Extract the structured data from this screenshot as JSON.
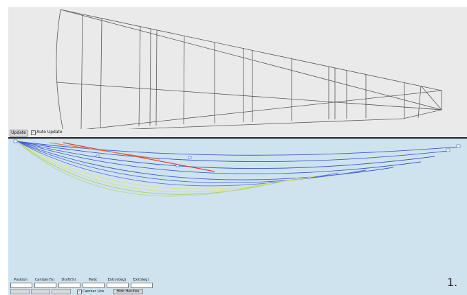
{
  "toolbar": {
    "update_label": "Update",
    "auto_update_label": "Auto Update",
    "auto_update_checked": true
  },
  "controls": {
    "columns": [
      "Position",
      "Camber(%)",
      "Draft(%)",
      "Twist",
      "Entry(deg)",
      "Exit(deg)"
    ],
    "camber_link_label": "Camber Link",
    "camber_link_checked": true,
    "hide_handles_label": "Hide Handles"
  },
  "page_number": "1.",
  "colors": {
    "top_background": "#eaeaea",
    "bottom_background": "#cfe3ef",
    "outline": "#555555",
    "curve_blue": "#3a5bd1",
    "curve_red": "#e0402a",
    "curve_yellow": "#e8e070",
    "curve_green": "#a8d070"
  }
}
